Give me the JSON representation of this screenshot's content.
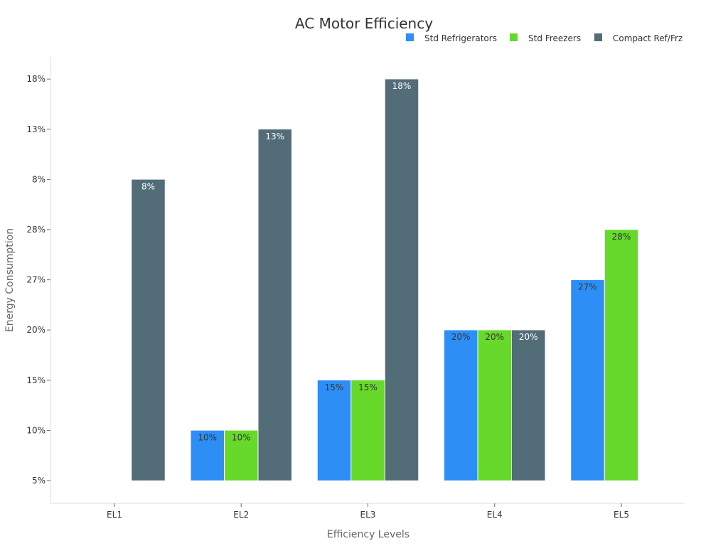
{
  "chart_data": {
    "type": "bar",
    "title": "AC Motor Efficiency",
    "xlabel": "Efficiency Levels",
    "ylabel": "Energy Consumption",
    "categories": [
      "EL1",
      "EL2",
      "EL3",
      "EL4",
      "EL5"
    ],
    "y_axis_type": "categorical",
    "y_categories": [
      "5%",
      "10%",
      "15%",
      "20%",
      "27%",
      "28%",
      "8%",
      "13%",
      "18%"
    ],
    "legend_position": "top-right",
    "grid": false,
    "series": [
      {
        "name": "Std Refrigerators",
        "color": "#2d8ff5",
        "label_color": "#333333",
        "values": [
          null,
          "10%",
          "15%",
          "20%",
          "27%"
        ]
      },
      {
        "name": "Std Freezers",
        "color": "#66d92a",
        "label_color": "#333333",
        "values": [
          null,
          "10%",
          "15%",
          "20%",
          "28%"
        ]
      },
      {
        "name": "Compact Ref/Frz",
        "color": "#526d78",
        "label_color": "#ffffff",
        "values": [
          "8%",
          "13%",
          "18%",
          "20%",
          null
        ]
      }
    ]
  }
}
